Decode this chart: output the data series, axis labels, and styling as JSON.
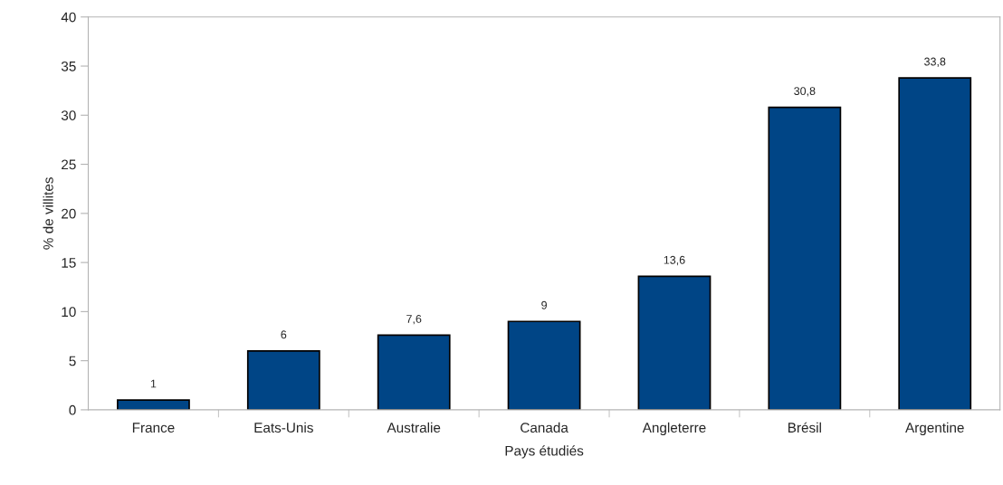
{
  "chart_data": {
    "type": "bar",
    "xlabel": "Pays étudiés",
    "ylabel": "% de villites",
    "categories": [
      "France",
      "Eats-Unis",
      "Australie",
      "Canada",
      "Angleterre",
      "Brésil",
      "Argentine"
    ],
    "values": [
      1,
      6,
      7.6,
      9,
      13.6,
      30.8,
      33.8
    ],
    "value_labels": [
      "1",
      "6",
      "7,6",
      "9",
      "13,6",
      "30,8",
      "33,8"
    ],
    "color": "#004586",
    "ylim": [
      0,
      40
    ],
    "yticks": [
      0,
      5,
      10,
      15,
      20,
      25,
      30,
      35,
      40
    ],
    "grid": false,
    "legend": false
  }
}
